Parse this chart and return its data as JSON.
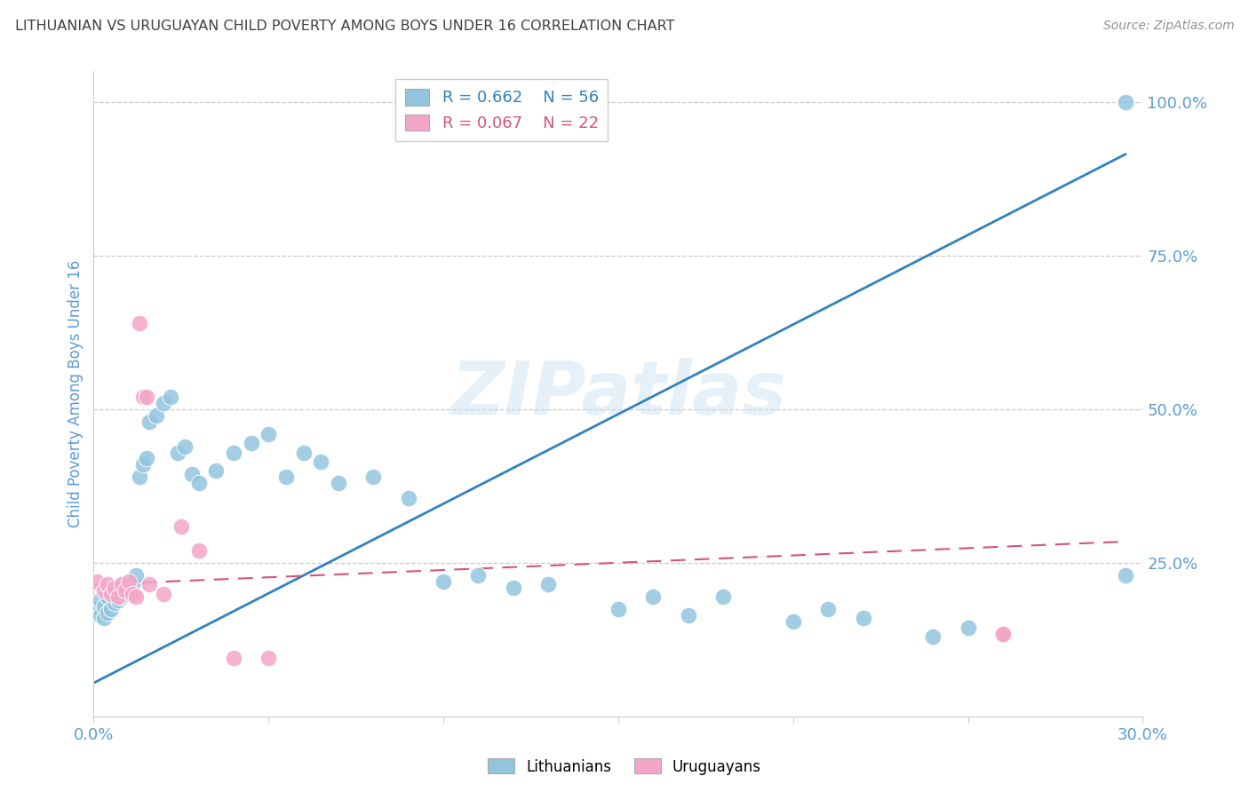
{
  "title": "LITHUANIAN VS URUGUAYAN CHILD POVERTY AMONG BOYS UNDER 16 CORRELATION CHART",
  "source": "Source: ZipAtlas.com",
  "ylabel_label": "Child Poverty Among Boys Under 16",
  "x_min": 0.0,
  "x_max": 0.3,
  "y_min": 0.0,
  "y_max": 1.05,
  "x_ticks": [
    0.0,
    0.05,
    0.1,
    0.15,
    0.2,
    0.25,
    0.3
  ],
  "x_tick_labels": [
    "0.0%",
    "",
    "",
    "",
    "",
    "",
    "30.0%"
  ],
  "right_y_ticks": [
    0.25,
    0.5,
    0.75,
    1.0
  ],
  "right_y_tick_labels": [
    "25.0%",
    "50.0%",
    "75.0%",
    "100.0%"
  ],
  "grid_color": "#c8c8c8",
  "background_color": "#ffffff",
  "watermark": "ZIPatlas",
  "legend_blue_r": "R = 0.662",
  "legend_blue_n": "N = 56",
  "legend_pink_r": "R = 0.067",
  "legend_pink_n": "N = 22",
  "blue_color": "#92c5de",
  "blue_line_color": "#3182bd",
  "pink_color": "#f4a6c8",
  "pink_line_color": "#d4547a",
  "axis_label_color": "#5b9bd5",
  "tick_color": "#5b9bd5",
  "title_color": "#404040",
  "source_color": "#909090",
  "lithuanians_x": [
    0.001,
    0.002,
    0.002,
    0.003,
    0.003,
    0.004,
    0.004,
    0.005,
    0.005,
    0.006,
    0.006,
    0.007,
    0.007,
    0.008,
    0.008,
    0.009,
    0.01,
    0.011,
    0.012,
    0.013,
    0.014,
    0.015,
    0.016,
    0.018,
    0.02,
    0.022,
    0.024,
    0.026,
    0.028,
    0.03,
    0.035,
    0.04,
    0.045,
    0.05,
    0.055,
    0.06,
    0.065,
    0.07,
    0.08,
    0.09,
    0.1,
    0.11,
    0.12,
    0.13,
    0.15,
    0.16,
    0.17,
    0.18,
    0.2,
    0.21,
    0.22,
    0.24,
    0.25,
    0.26,
    0.295,
    0.295
  ],
  "lithuanians_y": [
    0.175,
    0.165,
    0.19,
    0.16,
    0.18,
    0.17,
    0.195,
    0.175,
    0.2,
    0.185,
    0.205,
    0.19,
    0.21,
    0.195,
    0.215,
    0.2,
    0.205,
    0.215,
    0.23,
    0.39,
    0.41,
    0.42,
    0.48,
    0.49,
    0.51,
    0.52,
    0.43,
    0.44,
    0.395,
    0.38,
    0.4,
    0.43,
    0.445,
    0.46,
    0.39,
    0.43,
    0.415,
    0.38,
    0.39,
    0.355,
    0.22,
    0.23,
    0.21,
    0.215,
    0.175,
    0.195,
    0.165,
    0.195,
    0.155,
    0.175,
    0.16,
    0.13,
    0.145,
    0.135,
    0.23,
    1.0
  ],
  "uruguayans_x": [
    0.001,
    0.003,
    0.004,
    0.005,
    0.006,
    0.007,
    0.008,
    0.009,
    0.01,
    0.011,
    0.012,
    0.013,
    0.014,
    0.015,
    0.016,
    0.02,
    0.025,
    0.03,
    0.04,
    0.05,
    0.26,
    0.26
  ],
  "uruguayans_y": [
    0.22,
    0.205,
    0.215,
    0.2,
    0.21,
    0.195,
    0.215,
    0.205,
    0.22,
    0.2,
    0.195,
    0.64,
    0.52,
    0.52,
    0.215,
    0.2,
    0.31,
    0.27,
    0.095,
    0.095,
    0.135,
    0.135
  ],
  "blue_trendline_x": [
    0.0,
    0.295
  ],
  "blue_trendline_y": [
    0.055,
    0.915
  ],
  "pink_trendline_x": [
    0.0,
    0.295
  ],
  "pink_trendline_y": [
    0.215,
    0.285
  ]
}
